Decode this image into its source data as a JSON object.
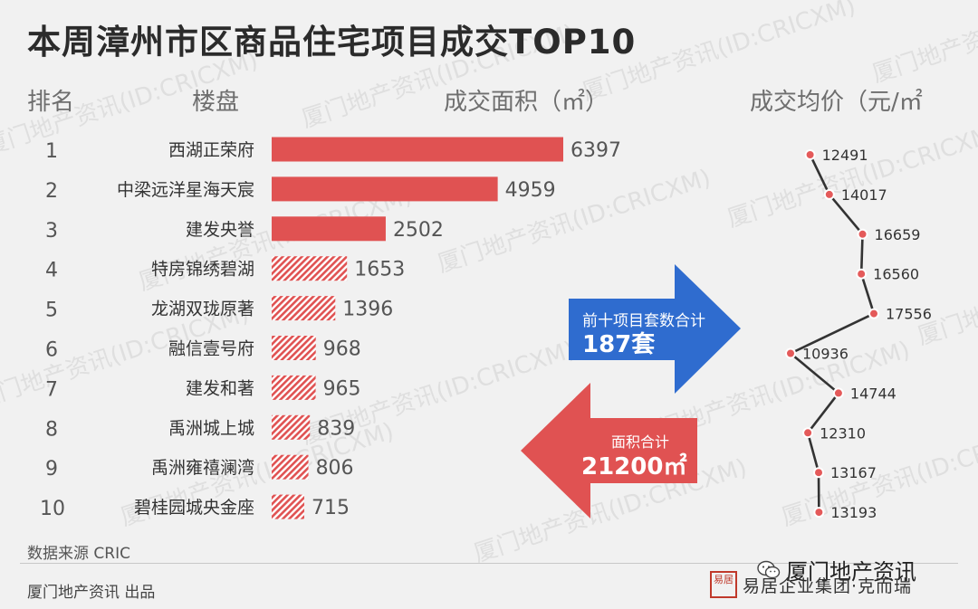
{
  "title": "本周漳州市区商品住宅项目成交TOP10",
  "headers": {
    "rank": "排名",
    "project": "楼盘",
    "area": "成交面积（㎡）",
    "price": "成交均价（元/㎡"
  },
  "chart_data": {
    "type": "bar",
    "title": "本周漳州市区商品住宅项目成交TOP10",
    "ranks": [
      "1",
      "2",
      "3",
      "4",
      "5",
      "6",
      "7",
      "8",
      "9",
      "10"
    ],
    "categories": [
      "西湖正荣府",
      "中梁远洋星海天宸",
      "建发央誉",
      "特房锦绣碧湖",
      "龙湖双珑原著",
      "融信壹号府",
      "建发和著",
      "禹洲城上城",
      "禹洲雍禧澜湾",
      "碧桂园城央金座"
    ],
    "series": [
      {
        "name": "成交面积（㎡）",
        "values": [
          6397,
          4959,
          2502,
          1653,
          1396,
          968,
          965,
          839,
          806,
          715
        ]
      },
      {
        "name": "成交均价（元/㎡",
        "values": [
          12491,
          14017,
          16659,
          16560,
          17556,
          10936,
          14744,
          12310,
          13167,
          13193
        ]
      }
    ],
    "bar_fill": {
      "solid_top_n": 3,
      "rest": "hatched"
    },
    "colors": {
      "bar": "#e05252",
      "line": "#333333",
      "point": "#e45a5a"
    }
  },
  "callouts": {
    "units": {
      "label": "前十项目套数合计",
      "value": "187套",
      "color": "#2f6ccf"
    },
    "area": {
      "label": "面积合计",
      "value": "21200㎡",
      "color": "#e05252"
    }
  },
  "footer": {
    "source": "数据来源  CRIC",
    "producer": "厦门地产资讯  出品",
    "wechat": "厦门地产资讯",
    "brand": "易居企业集团·克而瑞",
    "seal": "易居"
  },
  "watermark": "厦门地产资讯(ID:CRICXM)"
}
